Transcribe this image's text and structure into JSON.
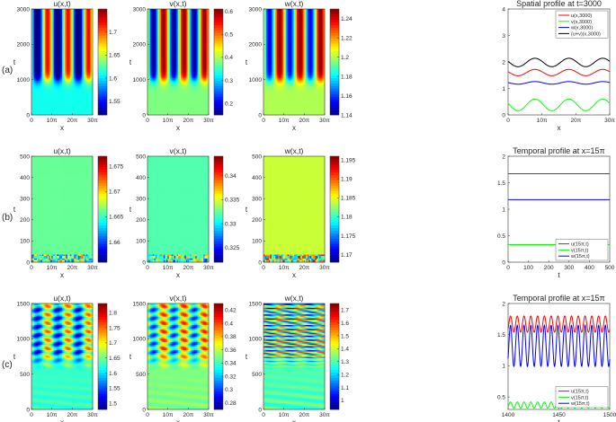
{
  "rows": [
    {
      "label": "(a)",
      "tmax": 3000,
      "yticks": [
        0,
        1000,
        2000,
        3000
      ],
      "t_onset": 1000
    },
    {
      "label": "(b)",
      "tmax": 500,
      "yticks": [
        0,
        100,
        200,
        300,
        400,
        500
      ],
      "t_onset": 40
    },
    {
      "label": "(c)",
      "tmax": 1500,
      "yticks": [
        0,
        500,
        1000,
        1500
      ],
      "t_onset": 560
    }
  ],
  "heatmap_xticks": [
    "0",
    "10π",
    "20π",
    "30π"
  ],
  "heatmap_xlabel": "x",
  "heatmap_ylabel": "t",
  "colormap": [
    "#00007f",
    "#0000ff",
    "#007fff",
    "#00ffff",
    "#7fff7f",
    "#ffff00",
    "#ff7f00",
    "#ff0000",
    "#7f0000"
  ],
  "colors": {
    "u": "#ff0000",
    "v": "#00ff00",
    "w": "#0000ff",
    "sum": "#000000"
  },
  "chart_data": [
    {
      "type": "heatmap",
      "row": "(a)",
      "title": "u(x,t)",
      "xlabel": "x",
      "ylabel": "t",
      "ylim": [
        0,
        3000
      ],
      "colorbar": {
        "min": 1.52,
        "max": 1.75,
        "ticks": [
          1.55,
          1.6,
          1.65,
          1.7
        ]
      },
      "pattern": {
        "uniform_value": 1.61,
        "stripe_amplitude": 0.115,
        "wavenumber": 0.2,
        "shift": 1.3,
        "onset_t": 1000
      }
    },
    {
      "type": "heatmap",
      "row": "(a)",
      "title": "v(x,t)",
      "xlabel": "x",
      "ylabel": "t",
      "ylim": [
        0,
        3000
      ],
      "colorbar": {
        "min": 0.15,
        "max": 0.61,
        "ticks": [
          0.2,
          0.3,
          0.4,
          0.5,
          0.6
        ]
      },
      "pattern": {
        "uniform_value": 0.38,
        "stripe_amplitude": 0.22,
        "wavenumber": 0.2,
        "shift": 1.3,
        "onset_t": 1000
      }
    },
    {
      "type": "heatmap",
      "row": "(a)",
      "title": "w(x,t)",
      "xlabel": "x",
      "ylabel": "t",
      "ylim": [
        0,
        3000
      ],
      "colorbar": {
        "min": 1.14,
        "max": 1.25,
        "ticks": [
          1.14,
          1.16,
          1.18,
          1.2,
          1.22,
          1.24
        ]
      },
      "pattern": {
        "uniform_value": 1.2,
        "stripe_amplitude": 0.05,
        "wavenumber": 0.2,
        "shift": 1.3,
        "onset_t": 1000
      }
    },
    {
      "type": "line",
      "row": "(a)",
      "title": "Spatial profile at t=3000",
      "xlabel": "x",
      "ylabel": "",
      "xlim": [
        0,
        94.25
      ],
      "xticks": [
        "0",
        "10π",
        "20π",
        "30π"
      ],
      "ylim": [
        0,
        4
      ],
      "yticks": [
        0,
        1,
        2,
        3,
        4
      ],
      "legend_position": "top-right",
      "series": [
        {
          "name": "u(x,3000)",
          "color": "#ff0000",
          "mean": 1.6,
          "amplitude": 0.12,
          "wavenumber": 0.2,
          "phase": 1.3
        },
        {
          "name": "v(x,3000)",
          "color": "#00ff00",
          "mean": 0.38,
          "amplitude": 0.22,
          "wavenumber": 0.2,
          "phase": 1.3
        },
        {
          "name": "w(x,3000)",
          "color": "#0000ff",
          "mean": 1.21,
          "amplitude": 0.05,
          "wavenumber": 0.2,
          "phase": 1.3
        },
        {
          "name": "(u+v)(x,3000)",
          "color": "#000000",
          "mean": 1.98,
          "amplitude": 0.16,
          "wavenumber": 0.2,
          "phase": 1.3
        }
      ]
    },
    {
      "type": "heatmap",
      "row": "(b)",
      "title": "u(x,t)",
      "xlabel": "x",
      "ylabel": "t",
      "ylim": [
        0,
        500
      ],
      "colorbar": {
        "min": 1.656,
        "max": 1.677,
        "ticks": [
          1.66,
          1.665,
          1.67,
          1.675
        ]
      },
      "pattern": {
        "uniform_value": 1.666,
        "noise_amplitude": 0.006,
        "noise_until_t": 40
      }
    },
    {
      "type": "heatmap",
      "row": "(b)",
      "title": "v(x,t)",
      "xlabel": "x",
      "ylabel": "t",
      "ylim": [
        0,
        500
      ],
      "colorbar": {
        "min": 0.322,
        "max": 0.344,
        "ticks": [
          0.325,
          0.33,
          0.335,
          0.34
        ]
      },
      "pattern": {
        "uniform_value": 0.332,
        "noise_amplitude": 0.006,
        "noise_until_t": 40
      }
    },
    {
      "type": "heatmap",
      "row": "(b)",
      "title": "w(x,t)",
      "xlabel": "x",
      "ylabel": "t",
      "ylim": [
        0,
        500
      ],
      "colorbar": {
        "min": 1.168,
        "max": 1.196,
        "ticks": [
          1.17,
          1.175,
          1.18,
          1.185,
          1.19,
          1.195
        ]
      },
      "pattern": {
        "uniform_value": 1.184,
        "noise_amplitude": 0.01,
        "noise_until_t": 40
      }
    },
    {
      "type": "line",
      "row": "(b)",
      "title": "Temporal profile at x=15π",
      "xlabel": "t",
      "ylabel": "",
      "xlim": [
        0,
        500
      ],
      "xticks": [
        "0",
        "100",
        "200",
        "300",
        "400",
        "500"
      ],
      "ylim": [
        0,
        2
      ],
      "yticks": [
        0,
        0.5,
        1,
        1.5,
        2
      ],
      "legend_position": "bottom-right",
      "series": [
        {
          "name": "u(15π,t)",
          "color": "#ff0000",
          "mean": 1.67,
          "amplitude": 0,
          "period": 1
        },
        {
          "name": "v(15π,t)",
          "color": "#00ff00",
          "mean": 0.33,
          "amplitude": 0,
          "period": 1
        },
        {
          "name": "w(15π,t)",
          "color": "#0000ff",
          "mean": 1.18,
          "amplitude": 0,
          "period": 1
        }
      ]
    },
    {
      "type": "heatmap",
      "row": "(c)",
      "title": "u(x,t)",
      "xlabel": "x",
      "ylabel": "t",
      "ylim": [
        0,
        1500
      ],
      "colorbar": {
        "min": 1.48,
        "max": 1.83,
        "ticks": [
          1.5,
          1.55,
          1.6,
          1.65,
          1.7,
          1.75,
          1.8
        ]
      },
      "pattern": {
        "uniform_value": 1.63,
        "stripe_amplitude": 0.1,
        "oscillation_amplitude": 0.09,
        "wavenumber": 0.2,
        "temporal_period": 120,
        "onset_t": 560
      }
    },
    {
      "type": "heatmap",
      "row": "(c)",
      "title": "v(x,t)",
      "xlabel": "x",
      "ylabel": "t",
      "ylim": [
        0,
        1500
      ],
      "colorbar": {
        "min": 0.27,
        "max": 0.43,
        "ticks": [
          0.28,
          0.3,
          0.32,
          0.34,
          0.36,
          0.38,
          0.4,
          0.42
        ]
      },
      "pattern": {
        "uniform_value": 0.35,
        "stripe_amplitude": 0.045,
        "oscillation_amplitude": 0.04,
        "wavenumber": 0.2,
        "temporal_period": 120,
        "onset_t": 560
      }
    },
    {
      "type": "heatmap",
      "row": "(c)",
      "title": "w(x,t)",
      "xlabel": "x",
      "ylabel": "t",
      "ylim": [
        0,
        1500
      ],
      "colorbar": {
        "min": 0.93,
        "max": 1.75,
        "ticks": [
          1,
          1.1,
          1.2,
          1.3,
          1.4,
          1.5,
          1.6,
          1.7
        ]
      },
      "pattern": {
        "uniform_value": 1.3,
        "stripe_amplitude": 0.1,
        "oscillation_amplitude": 0.38,
        "wavenumber": 0.2,
        "temporal_period": 30,
        "onset_t": 560
      }
    },
    {
      "type": "line",
      "row": "(c)",
      "title": "Temporal profile at x=15π",
      "xlabel": "t",
      "ylabel": "",
      "xlim": [
        1400,
        1500
      ],
      "xticks": [
        "1400",
        "1450",
        "1500"
      ],
      "ylim": [
        0.3,
        2
      ],
      "yticks": [
        0.5,
        1,
        1.5,
        2
      ],
      "legend_position": "bottom-right",
      "series": [
        {
          "name": "u(15π,t)",
          "color": "#ff0000",
          "mean": 1.67,
          "amplitude": 0.13,
          "period": 6.67
        },
        {
          "name": "v(15π,t)",
          "color": "#00ff00",
          "mean": 0.37,
          "amplitude": 0.05,
          "period": 6.67
        },
        {
          "name": "w(15π,t)",
          "color": "#0000ff",
          "mean": 1.32,
          "amplitude": 0.33,
          "period": 6.67
        }
      ]
    }
  ]
}
